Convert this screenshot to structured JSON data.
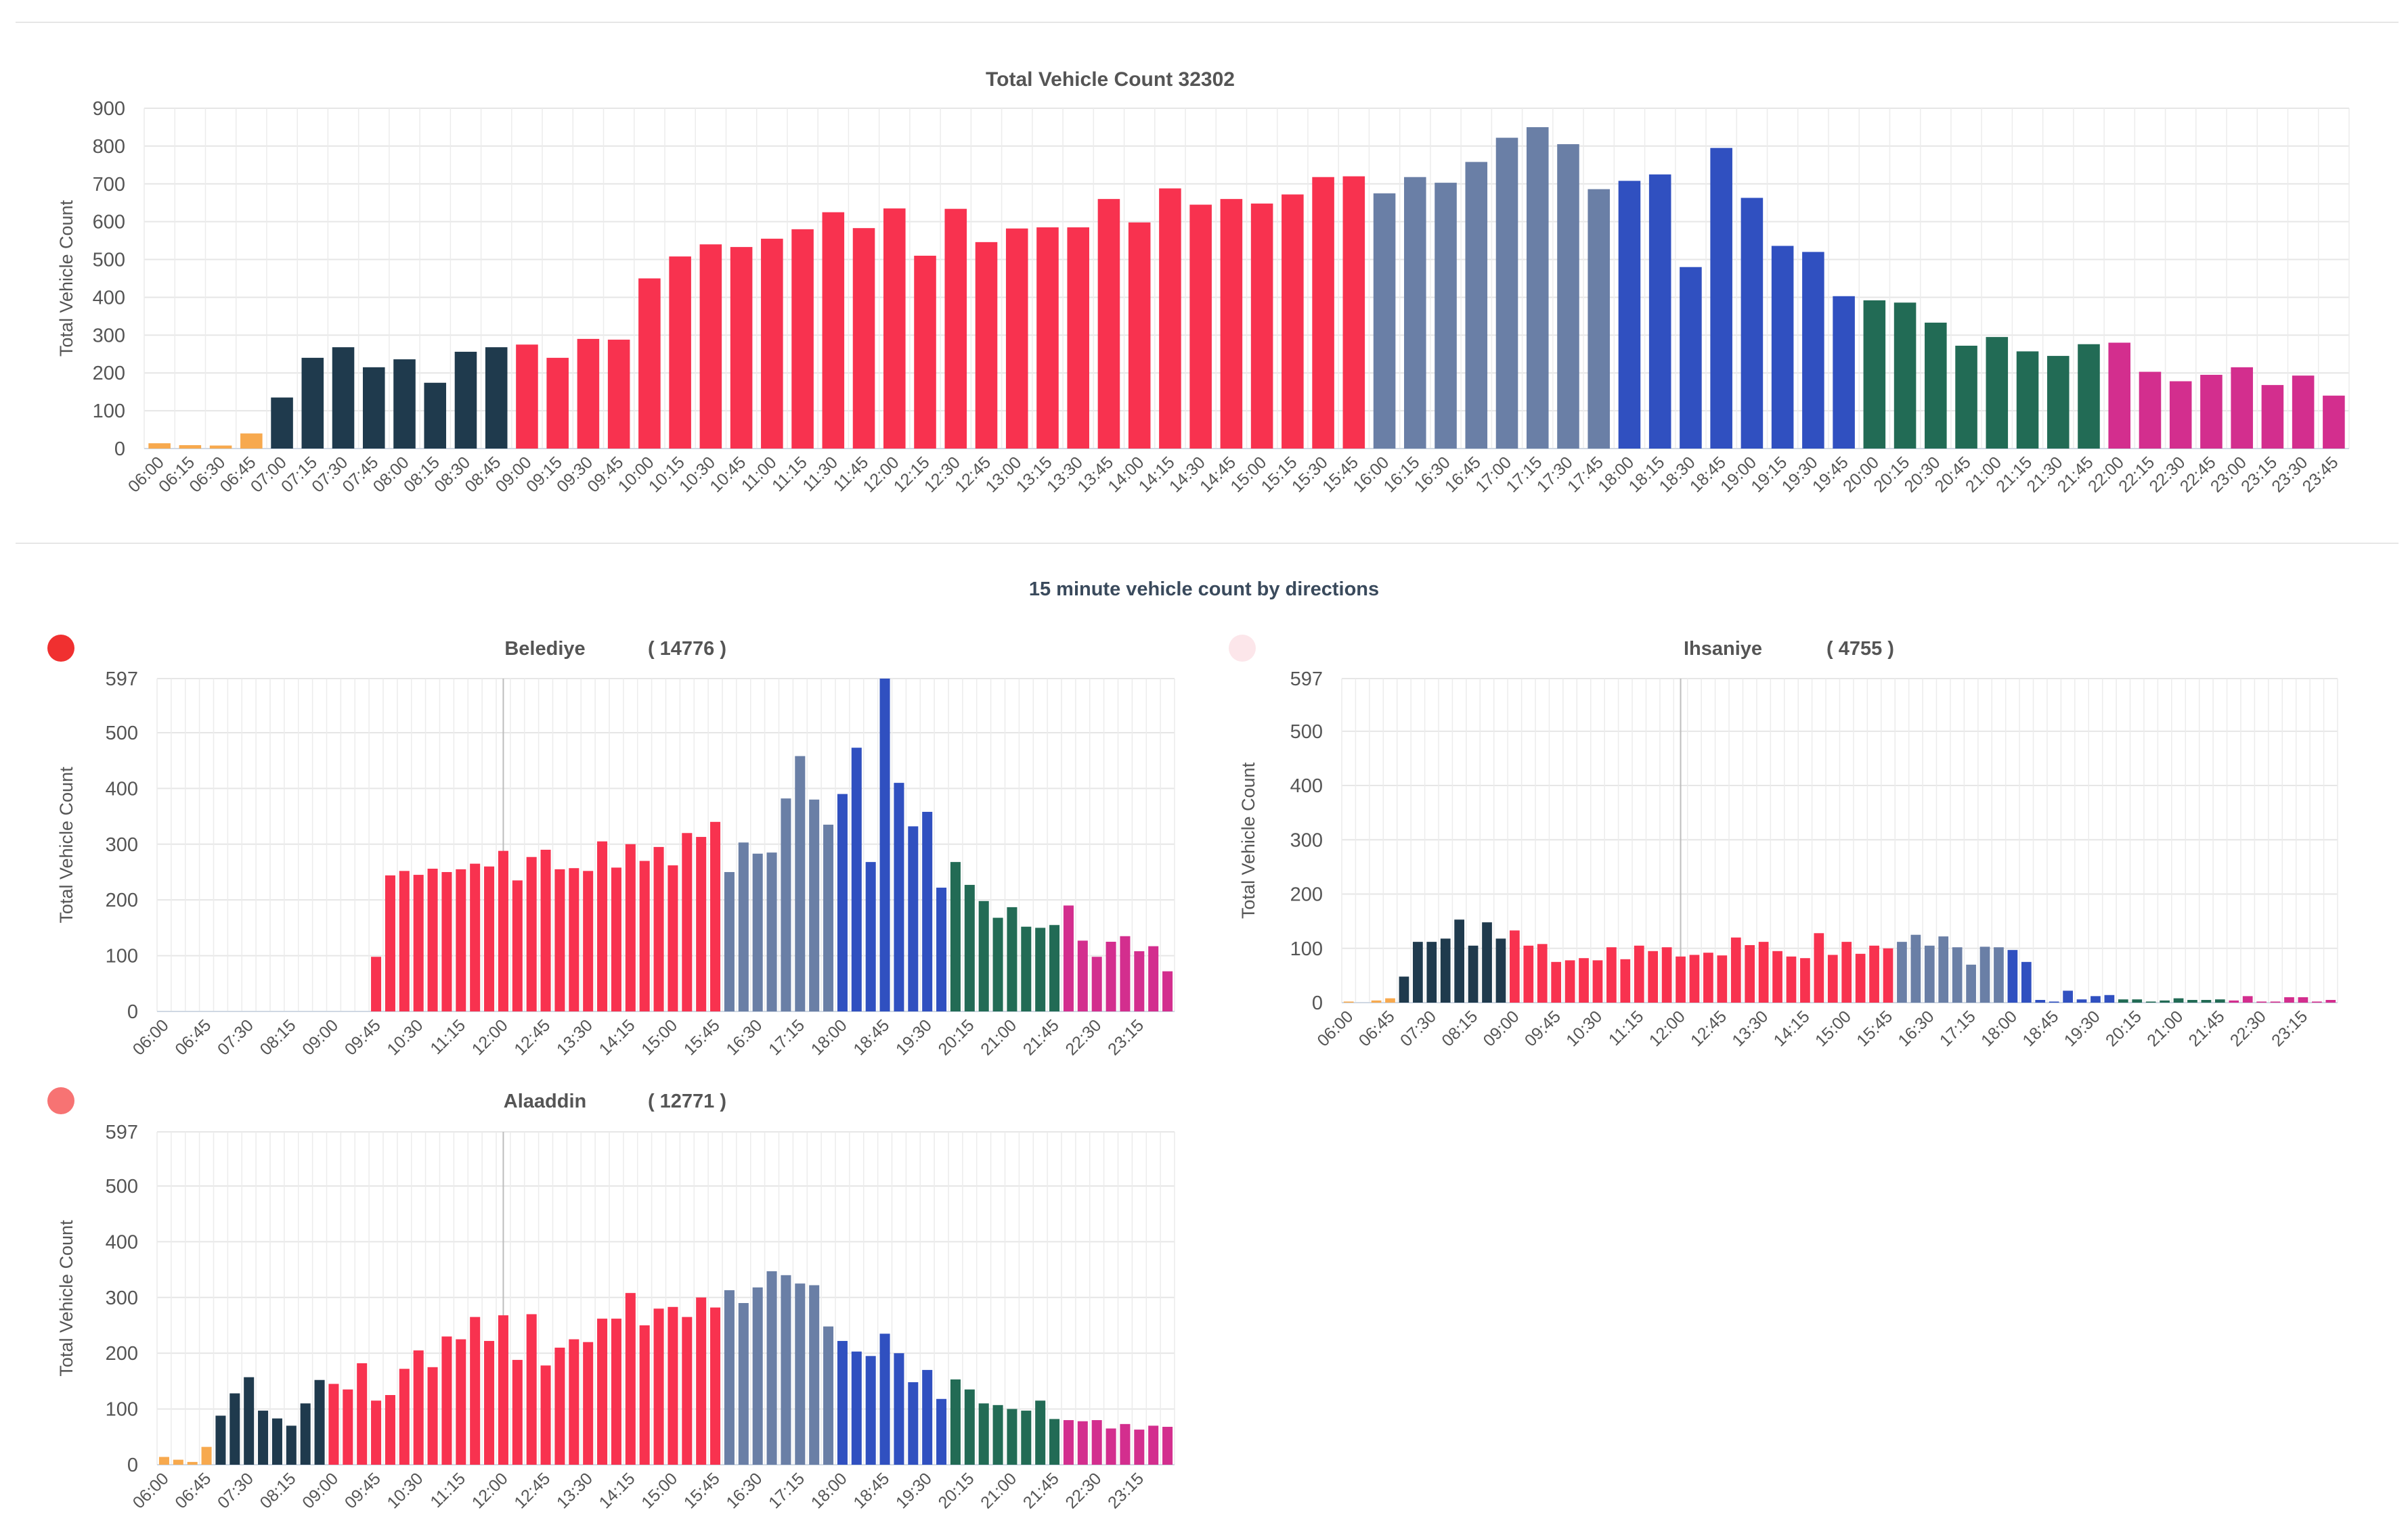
{
  "colors": {
    "orange": "#F7A94E",
    "navy": "#1F3A4D",
    "red": "#F8324F",
    "slate": "#6A7FA6",
    "blue": "#3050C0",
    "green": "#226B55",
    "magenta": "#D32E8E",
    "dir_red": "#F03030",
    "dir_pink": "#FCE6EA",
    "dir_salmon": "#F77373"
  },
  "section_title": "15 minute vehicle count by directions",
  "chart_data": [
    {
      "type": "bar",
      "title": "Total Vehicle Count   32302",
      "ylabel": "Total Vehicle Count",
      "ylim": [
        0,
        900
      ],
      "yticks": [
        0,
        100,
        200,
        300,
        400,
        500,
        600,
        700,
        800,
        900
      ],
      "grid": true,
      "categories": [
        "06:00",
        "06:15",
        "06:30",
        "06:45",
        "07:00",
        "07:15",
        "07:30",
        "07:45",
        "08:00",
        "08:15",
        "08:30",
        "08:45",
        "09:00",
        "09:15",
        "09:30",
        "09:45",
        "10:00",
        "10:15",
        "10:30",
        "10:45",
        "11:00",
        "11:15",
        "11:30",
        "11:45",
        "12:00",
        "12:15",
        "12:30",
        "12:45",
        "13:00",
        "13:15",
        "13:30",
        "13:45",
        "14:00",
        "14:15",
        "14:30",
        "14:45",
        "15:00",
        "15:15",
        "15:30",
        "15:45",
        "16:00",
        "16:15",
        "16:30",
        "16:45",
        "17:00",
        "17:15",
        "17:30",
        "17:45",
        "18:00",
        "18:15",
        "18:30",
        "18:45",
        "19:00",
        "19:15",
        "19:30",
        "19:45",
        "20:00",
        "20:15",
        "20:30",
        "20:45",
        "21:00",
        "21:15",
        "21:30",
        "21:45",
        "22:00",
        "22:15",
        "22:30",
        "22:45",
        "23:00",
        "23:15",
        "23:30",
        "23:45"
      ],
      "values": [
        14,
        9,
        8,
        40,
        135,
        240,
        268,
        215,
        236,
        174,
        256,
        268,
        275,
        240,
        290,
        288,
        450,
        508,
        540,
        533,
        555,
        580,
        625,
        583,
        635,
        510,
        634,
        546,
        582,
        585,
        585,
        660,
        598,
        688,
        645,
        660,
        648,
        672,
        718,
        720,
        675,
        718,
        703,
        758,
        822,
        850,
        805,
        686,
        708,
        725,
        480,
        795,
        663,
        536,
        520,
        403,
        392,
        386,
        333,
        272,
        295,
        257,
        245,
        276,
        280,
        203,
        178,
        195,
        215,
        168,
        193,
        140
      ],
      "colors": [
        "orange",
        "orange",
        "orange",
        "orange",
        "navy",
        "navy",
        "navy",
        "navy",
        "navy",
        "navy",
        "navy",
        "navy",
        "red",
        "red",
        "red",
        "red",
        "red",
        "red",
        "red",
        "red",
        "red",
        "red",
        "red",
        "red",
        "red",
        "red",
        "red",
        "red",
        "red",
        "red",
        "red",
        "red",
        "red",
        "red",
        "red",
        "red",
        "red",
        "red",
        "red",
        "red",
        "slate",
        "slate",
        "slate",
        "slate",
        "slate",
        "slate",
        "slate",
        "slate",
        "blue",
        "blue",
        "blue",
        "blue",
        "blue",
        "blue",
        "blue",
        "blue",
        "green",
        "green",
        "green",
        "green",
        "green",
        "green",
        "green",
        "green",
        "magenta",
        "magenta",
        "magenta",
        "magenta",
        "magenta",
        "magenta",
        "magenta",
        "magenta"
      ]
    },
    {
      "type": "bar",
      "title": "Belediye",
      "count": "( 14776 )",
      "ylabel": "Total Vehicle Count",
      "ylim": [
        0,
        597
      ],
      "yticks": [
        0,
        100,
        200,
        300,
        400,
        500,
        597
      ],
      "grid": true,
      "categories": [
        "06:00",
        "06:15",
        "06:30",
        "06:45",
        "07:00",
        "07:15",
        "07:30",
        "07:45",
        "08:00",
        "08:15",
        "08:30",
        "08:45",
        "09:00",
        "09:15",
        "09:30",
        "09:45",
        "10:00",
        "10:15",
        "10:30",
        "10:45",
        "11:00",
        "11:15",
        "11:30",
        "11:45",
        "12:00",
        "12:15",
        "12:30",
        "12:45",
        "13:00",
        "13:15",
        "13:30",
        "13:45",
        "14:00",
        "14:15",
        "14:30",
        "14:45",
        "15:00",
        "15:15",
        "15:30",
        "15:45",
        "16:00",
        "16:15",
        "16:30",
        "16:45",
        "17:00",
        "17:15",
        "17:30",
        "17:45",
        "18:00",
        "18:15",
        "18:30",
        "18:45",
        "19:00",
        "19:15",
        "19:30",
        "19:45",
        "20:00",
        "20:15",
        "20:30",
        "20:45",
        "21:00",
        "21:15",
        "21:30",
        "21:45",
        "22:00",
        "22:15",
        "22:30",
        "22:45",
        "23:00",
        "23:15",
        "23:30",
        "23:45"
      ],
      "values": [
        0,
        0,
        0,
        0,
        0,
        0,
        0,
        0,
        0,
        0,
        0,
        0,
        0,
        0,
        0,
        98,
        244,
        252,
        245,
        256,
        250,
        255,
        265,
        260,
        288,
        235,
        277,
        290,
        255,
        257,
        252,
        305,
        258,
        300,
        270,
        295,
        262,
        320,
        313,
        340,
        250,
        303,
        283,
        285,
        382,
        458,
        380,
        335,
        390,
        473,
        268,
        597,
        410,
        332,
        358,
        222,
        268,
        227,
        198,
        168,
        187,
        152,
        150,
        155,
        190,
        127,
        98,
        125,
        135,
        108,
        117,
        72
      ],
      "colors": [
        "orange",
        "orange",
        "orange",
        "orange",
        "navy",
        "navy",
        "navy",
        "navy",
        "navy",
        "navy",
        "navy",
        "navy",
        "red",
        "red",
        "red",
        "red",
        "red",
        "red",
        "red",
        "red",
        "red",
        "red",
        "red",
        "red",
        "red",
        "red",
        "red",
        "red",
        "red",
        "red",
        "red",
        "red",
        "red",
        "red",
        "red",
        "red",
        "red",
        "red",
        "red",
        "red",
        "slate",
        "slate",
        "slate",
        "slate",
        "slate",
        "slate",
        "slate",
        "slate",
        "blue",
        "blue",
        "blue",
        "blue",
        "blue",
        "blue",
        "blue",
        "blue",
        "green",
        "green",
        "green",
        "green",
        "green",
        "green",
        "green",
        "green",
        "magenta",
        "magenta",
        "magenta",
        "magenta",
        "magenta",
        "magenta",
        "magenta",
        "magenta"
      ]
    },
    {
      "type": "bar",
      "title": "Ihsaniye",
      "count": "( 4755 )",
      "ylabel": "Total Vehicle Count",
      "ylim": [
        0,
        597
      ],
      "yticks": [
        0,
        100,
        200,
        300,
        400,
        500,
        597
      ],
      "grid": true,
      "categories": [
        "06:00",
        "06:15",
        "06:30",
        "06:45",
        "07:00",
        "07:15",
        "07:30",
        "07:45",
        "08:00",
        "08:15",
        "08:30",
        "08:45",
        "09:00",
        "09:15",
        "09:30",
        "09:45",
        "10:00",
        "10:15",
        "10:30",
        "10:45",
        "11:00",
        "11:15",
        "11:30",
        "11:45",
        "12:00",
        "12:15",
        "12:30",
        "12:45",
        "13:00",
        "13:15",
        "13:30",
        "13:45",
        "14:00",
        "14:15",
        "14:30",
        "14:45",
        "15:00",
        "15:15",
        "15:30",
        "15:45",
        "16:00",
        "16:15",
        "16:30",
        "16:45",
        "17:00",
        "17:15",
        "17:30",
        "17:45",
        "18:00",
        "18:15",
        "18:30",
        "18:45",
        "19:00",
        "19:15",
        "19:30",
        "19:45",
        "20:00",
        "20:15",
        "20:30",
        "20:45",
        "21:00",
        "21:15",
        "21:30",
        "21:45",
        "22:00",
        "22:15",
        "22:30",
        "22:45",
        "23:00",
        "23:15",
        "23:30",
        "23:45"
      ],
      "values": [
        2,
        0,
        4,
        8,
        48,
        112,
        112,
        118,
        153,
        105,
        148,
        118,
        133,
        105,
        108,
        75,
        78,
        82,
        78,
        102,
        80,
        105,
        95,
        102,
        85,
        88,
        92,
        87,
        120,
        106,
        112,
        95,
        85,
        82,
        128,
        88,
        112,
        90,
        105,
        100,
        112,
        125,
        105,
        122,
        102,
        70,
        103,
        102,
        97,
        75,
        5,
        2,
        22,
        6,
        12,
        14,
        6,
        6,
        2,
        4,
        8,
        5,
        5,
        6,
        4,
        12,
        2,
        2,
        10,
        10,
        2,
        5
      ],
      "colors": [
        "orange",
        "orange",
        "orange",
        "orange",
        "navy",
        "navy",
        "navy",
        "navy",
        "navy",
        "navy",
        "navy",
        "navy",
        "red",
        "red",
        "red",
        "red",
        "red",
        "red",
        "red",
        "red",
        "red",
        "red",
        "red",
        "red",
        "red",
        "red",
        "red",
        "red",
        "red",
        "red",
        "red",
        "red",
        "red",
        "red",
        "red",
        "red",
        "red",
        "red",
        "red",
        "red",
        "slate",
        "slate",
        "slate",
        "slate",
        "slate",
        "slate",
        "slate",
        "slate",
        "blue",
        "blue",
        "blue",
        "blue",
        "blue",
        "blue",
        "blue",
        "blue",
        "green",
        "green",
        "green",
        "green",
        "green",
        "green",
        "green",
        "green",
        "magenta",
        "magenta",
        "magenta",
        "magenta",
        "magenta",
        "magenta",
        "magenta",
        "magenta"
      ]
    },
    {
      "type": "bar",
      "title": "Alaaddin",
      "count": "( 12771 )",
      "ylabel": "Total Vehicle Count",
      "ylim": [
        0,
        597
      ],
      "yticks": [
        0,
        100,
        200,
        300,
        400,
        500,
        597
      ],
      "grid": true,
      "categories": [
        "06:00",
        "06:15",
        "06:30",
        "06:45",
        "07:00",
        "07:15",
        "07:30",
        "07:45",
        "08:00",
        "08:15",
        "08:30",
        "08:45",
        "09:00",
        "09:15",
        "09:30",
        "09:45",
        "10:00",
        "10:15",
        "10:30",
        "10:45",
        "11:00",
        "11:15",
        "11:30",
        "11:45",
        "12:00",
        "12:15",
        "12:30",
        "12:45",
        "13:00",
        "13:15",
        "13:30",
        "13:45",
        "14:00",
        "14:15",
        "14:30",
        "14:45",
        "15:00",
        "15:15",
        "15:30",
        "15:45",
        "16:00",
        "16:15",
        "16:30",
        "16:45",
        "17:00",
        "17:15",
        "17:30",
        "17:45",
        "18:00",
        "18:15",
        "18:30",
        "18:45",
        "19:00",
        "19:15",
        "19:30",
        "19:45",
        "20:00",
        "20:15",
        "20:30",
        "20:45",
        "21:00",
        "21:15",
        "21:30",
        "21:45",
        "22:00",
        "22:15",
        "22:30",
        "22:45",
        "23:00",
        "23:15",
        "23:30",
        "23:45"
      ],
      "values": [
        14,
        9,
        5,
        32,
        88,
        128,
        157,
        97,
        83,
        70,
        110,
        152,
        145,
        135,
        182,
        115,
        125,
        172,
        205,
        175,
        230,
        225,
        265,
        222,
        268,
        188,
        270,
        178,
        210,
        225,
        220,
        262,
        262,
        308,
        250,
        280,
        283,
        265,
        300,
        282,
        313,
        290,
        318,
        347,
        340,
        325,
        322,
        248,
        222,
        203,
        195,
        235,
        200,
        148,
        170,
        118,
        153,
        135,
        110,
        107,
        100,
        97,
        115,
        82,
        80,
        78,
        80,
        65,
        73,
        63,
        70,
        68
      ],
      "colors": [
        "orange",
        "orange",
        "orange",
        "orange",
        "navy",
        "navy",
        "navy",
        "navy",
        "navy",
        "navy",
        "navy",
        "navy",
        "red",
        "red",
        "red",
        "red",
        "red",
        "red",
        "red",
        "red",
        "red",
        "red",
        "red",
        "red",
        "red",
        "red",
        "red",
        "red",
        "red",
        "red",
        "red",
        "red",
        "red",
        "red",
        "red",
        "red",
        "red",
        "red",
        "red",
        "red",
        "slate",
        "slate",
        "slate",
        "slate",
        "slate",
        "slate",
        "slate",
        "slate",
        "blue",
        "blue",
        "blue",
        "blue",
        "blue",
        "blue",
        "blue",
        "blue",
        "green",
        "green",
        "green",
        "green",
        "green",
        "green",
        "green",
        "green",
        "magenta",
        "magenta",
        "magenta",
        "magenta",
        "magenta",
        "magenta",
        "magenta",
        "magenta"
      ]
    }
  ]
}
